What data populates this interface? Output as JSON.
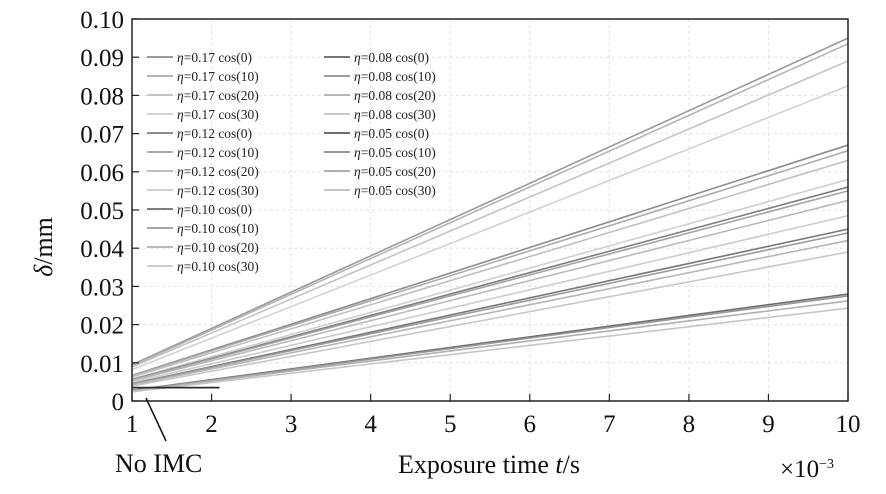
{
  "chart_data": {
    "type": "line",
    "xlabel_main": "Exposure time ",
    "xlabel_var": "t",
    "xlabel_unit": "/s",
    "ylabel_var": "δ",
    "ylabel_unit": "/mm",
    "x_multiplier": "×10",
    "x_multiplier_exp": "−3",
    "xlim": [
      1,
      10
    ],
    "ylim": [
      0,
      0.1
    ],
    "xticks": [
      "1",
      "2",
      "3",
      "4",
      "5",
      "6",
      "7",
      "8",
      "9",
      "10"
    ],
    "yticks": [
      "0",
      "0.01",
      "0.02",
      "0.03",
      "0.04",
      "0.05",
      "0.06",
      "0.07",
      "0.08",
      "0.09",
      "0.10"
    ],
    "grid": true,
    "legend_location": "top-left",
    "annotation": "No IMC",
    "no_imc_series": {
      "x": [
        1.0,
        2.1
      ],
      "y": [
        0.0035,
        0.0035
      ],
      "color": "#2b2b2b"
    },
    "series": [
      {
        "eta": "0.17",
        "angle": "0",
        "color": "#9a9a9a",
        "x": [
          1,
          10
        ],
        "y": [
          0.0095,
          0.095
        ]
      },
      {
        "eta": "0.17",
        "angle": "10",
        "color": "#b4b4b4",
        "x": [
          1,
          10
        ],
        "y": [
          0.0092,
          0.0935
        ]
      },
      {
        "eta": "0.17",
        "angle": "20",
        "color": "#c4c4c4",
        "x": [
          1,
          10
        ],
        "y": [
          0.0089,
          0.089
        ]
      },
      {
        "eta": "0.17",
        "angle": "30",
        "color": "#d2d2d2",
        "x": [
          1,
          10
        ],
        "y": [
          0.0082,
          0.0825
        ]
      },
      {
        "eta": "0.12",
        "angle": "0",
        "color": "#8c8c8c",
        "x": [
          1,
          10
        ],
        "y": [
          0.0067,
          0.067
        ]
      },
      {
        "eta": "0.12",
        "angle": "10",
        "color": "#ababab",
        "x": [
          1,
          10
        ],
        "y": [
          0.0066,
          0.0655
        ]
      },
      {
        "eta": "0.12",
        "angle": "20",
        "color": "#c0c0c0",
        "x": [
          1,
          10
        ],
        "y": [
          0.0063,
          0.063
        ]
      },
      {
        "eta": "0.12",
        "angle": "30",
        "color": "#d0d0d0",
        "x": [
          1,
          10
        ],
        "y": [
          0.0058,
          0.058
        ]
      },
      {
        "eta": "0.10",
        "angle": "0",
        "color": "#7e7e7e",
        "x": [
          1,
          10
        ],
        "y": [
          0.0056,
          0.056
        ]
      },
      {
        "eta": "0.10",
        "angle": "10",
        "color": "#a4a4a4",
        "x": [
          1,
          10
        ],
        "y": [
          0.0055,
          0.055
        ]
      },
      {
        "eta": "0.10",
        "angle": "20",
        "color": "#bababa",
        "x": [
          1,
          10
        ],
        "y": [
          0.0053,
          0.0525
        ]
      },
      {
        "eta": "0.10",
        "angle": "30",
        "color": "#cccccc",
        "x": [
          1,
          10
        ],
        "y": [
          0.0049,
          0.0485
        ]
      },
      {
        "eta": "0.08",
        "angle": "0",
        "color": "#777777",
        "x": [
          1,
          10
        ],
        "y": [
          0.0045,
          0.045
        ]
      },
      {
        "eta": "0.08",
        "angle": "10",
        "color": "#9d9d9d",
        "x": [
          1,
          10
        ],
        "y": [
          0.0044,
          0.044
        ]
      },
      {
        "eta": "0.08",
        "angle": "20",
        "color": "#b6b6b6",
        "x": [
          1,
          10
        ],
        "y": [
          0.0042,
          0.042
        ]
      },
      {
        "eta": "0.08",
        "angle": "30",
        "color": "#c8c8c8",
        "x": [
          1,
          10
        ],
        "y": [
          0.0039,
          0.039
        ]
      },
      {
        "eta": "0.05",
        "angle": "0",
        "color": "#6e6e6e",
        "x": [
          1,
          10
        ],
        "y": [
          0.0028,
          0.028
        ]
      },
      {
        "eta": "0.05",
        "angle": "10",
        "color": "#979797",
        "x": [
          1,
          10
        ],
        "y": [
          0.0027,
          0.0275
        ]
      },
      {
        "eta": "0.05",
        "angle": "20",
        "color": "#b0b0b0",
        "x": [
          1,
          10
        ],
        "y": [
          0.0026,
          0.0262
        ]
      },
      {
        "eta": "0.05",
        "angle": "30",
        "color": "#c6c6c6",
        "x": [
          1,
          10
        ],
        "y": [
          0.0024,
          0.0243
        ]
      }
    ]
  }
}
